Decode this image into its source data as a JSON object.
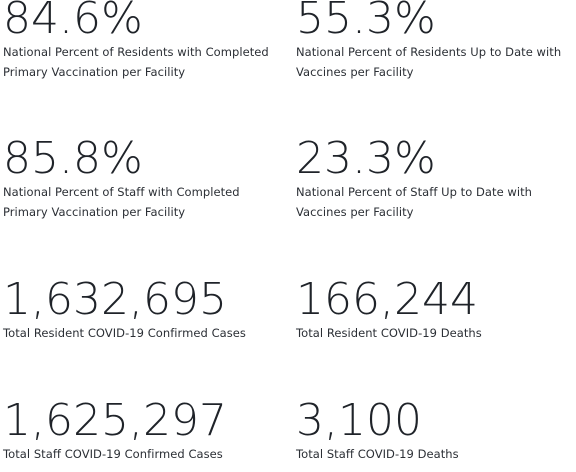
{
  "stats": [
    {
      "value": "84.6%",
      "label": "National Percent of Residents with Completed Primary Vaccination per Facility"
    },
    {
      "value": "55.3%",
      "label": "National Percent of Residents Up to Date with Vaccines per Facility"
    },
    {
      "value": "85.8%",
      "label": "National Percent of Staff with Completed Primary Vaccination per Facility"
    },
    {
      "value": "23.3%",
      "label": "National Percent of Staff Up to Date with Vaccines per Facility"
    },
    {
      "value": "1,632,695",
      "label": "Total Resident COVID-19 Confirmed Cases"
    },
    {
      "value": "166,244",
      "label": "Total Resident COVID-19 Deaths"
    },
    {
      "value": "1,625,297",
      "label": "Total Staff COVID-19 Confirmed Cases"
    },
    {
      "value": "3,100",
      "label": "Total Staff COVID-19 Deaths"
    }
  ]
}
